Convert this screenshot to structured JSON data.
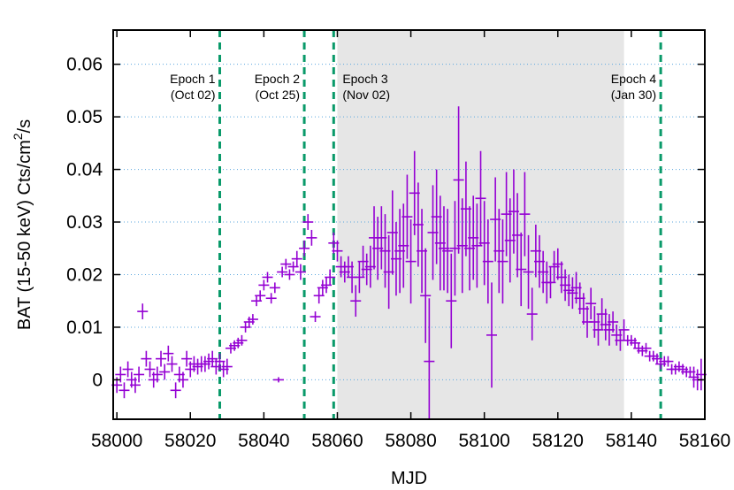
{
  "chart_data": {
    "type": "scatter",
    "xlabel": "MJD",
    "ylabel_main": "BAT (15-50 keV) Cts/cm",
    "ylabel_sup": "2",
    "ylabel_tail": "/s",
    "xlim": [
      57999,
      58160
    ],
    "ylim": [
      -0.0075,
      0.0665
    ],
    "x_ticks": [
      58000,
      58020,
      58040,
      58060,
      58080,
      58100,
      58120,
      58140,
      58160
    ],
    "y_ticks": [
      0,
      0.01,
      0.02,
      0.03,
      0.04,
      0.05,
      0.06
    ],
    "x_tick_labels": [
      "58000",
      "58020",
      "58040",
      "58060",
      "58080",
      "58100",
      "58120",
      "58140",
      "58160"
    ],
    "y_tick_labels": [
      "0",
      "0.01",
      "0.02",
      "0.03",
      "0.04",
      "0.05",
      "0.06"
    ],
    "grid": "horizontal dotted",
    "shaded_region": {
      "x_start": 58060,
      "x_end": 58138,
      "color": "#e6e6e6"
    },
    "epochs": [
      {
        "line1": "Epoch 1",
        "line2": "(Oct 02)",
        "x": 58028
      },
      {
        "line1": "Epoch 2",
        "line2": "(Oct 25)",
        "x": 58051
      },
      {
        "line1": "Epoch 3",
        "line2": "(Nov 02)",
        "x": 58059
      },
      {
        "line1": "Epoch 4",
        "line2": "(Jan 30)",
        "x": 58148
      }
    ],
    "series": [
      {
        "color": "#9400d3",
        "points": [
          [
            58000,
            -0.001,
            0.0015
          ],
          [
            58001,
            0.001,
            0.0015
          ],
          [
            58002,
            -0.002,
            0.0015
          ],
          [
            58003,
            0.002,
            0.0015
          ],
          [
            58004,
            0.0,
            0.0015
          ],
          [
            58005,
            -0.001,
            0.0015
          ],
          [
            58006,
            0.001,
            0.0015
          ],
          [
            58007,
            0.013,
            0.0015
          ],
          [
            58008,
            0.004,
            0.0015
          ],
          [
            58009,
            0.002,
            0.0015
          ],
          [
            58010,
            0.0,
            0.0015
          ],
          [
            58011,
            0.001,
            0.0015
          ],
          [
            58012,
            0.004,
            0.0015
          ],
          [
            58013,
            0.0015,
            0.0015
          ],
          [
            58014,
            0.005,
            0.0015
          ],
          [
            58015,
            0.003,
            0.0015
          ],
          [
            58016,
            -0.002,
            0.0015
          ],
          [
            58017,
            0.001,
            0.0015
          ],
          [
            58018,
            0.0,
            0.0015
          ],
          [
            58019,
            0.004,
            0.0015
          ],
          [
            58020,
            0.002,
            0.0015
          ],
          [
            58021,
            0.003,
            0.0015
          ],
          [
            58022,
            0.0025,
            0.0015
          ],
          [
            58023,
            0.003,
            0.0015
          ],
          [
            58024,
            0.003,
            0.0015
          ],
          [
            58025,
            0.0035,
            0.0015
          ],
          [
            58026,
            0.004,
            0.0015
          ],
          [
            58027,
            0.0025,
            0.0015
          ],
          [
            58028,
            0.0035,
            0.0015
          ],
          [
            58029,
            0.002,
            0.0015
          ],
          [
            58030,
            0.0025,
            0.0015
          ],
          [
            58031,
            0.006,
            0.001
          ],
          [
            58032,
            0.0065,
            0.001
          ],
          [
            58033,
            0.007,
            0.001
          ],
          [
            58034,
            0.0075,
            0.001
          ],
          [
            58035,
            0.01,
            0.001
          ],
          [
            58036,
            0.011,
            0.001
          ],
          [
            58037,
            0.0115,
            0.001
          ],
          [
            58038,
            0.015,
            0.001
          ],
          [
            58039,
            0.016,
            0.001
          ],
          [
            58040,
            0.018,
            0.001
          ],
          [
            58041,
            0.0195,
            0.001
          ],
          [
            58042,
            0.0155,
            0.001
          ],
          [
            58043,
            0.0175,
            0.001
          ],
          [
            58044,
            0.0,
            0.0005
          ],
          [
            58045,
            0.0205,
            0.001
          ],
          [
            58046,
            0.022,
            0.001
          ],
          [
            58047,
            0.02,
            0.001
          ],
          [
            58048,
            0.0215,
            0.001
          ],
          [
            58049,
            0.023,
            0.0015
          ],
          [
            58050,
            0.0205,
            0.0015
          ],
          [
            58051,
            0.025,
            0.0015
          ],
          [
            58052,
            0.03,
            0.0015
          ],
          [
            58053,
            0.027,
            0.0015
          ],
          [
            58054,
            0.012,
            0.001
          ],
          [
            58055,
            0.016,
            0.0015
          ],
          [
            58056,
            0.0175,
            0.0015
          ],
          [
            58057,
            0.018,
            0.0015
          ],
          [
            58058,
            0.0195,
            0.0015
          ],
          [
            58059,
            0.026,
            0.002
          ],
          [
            58060,
            0.0245,
            0.002
          ],
          [
            58061,
            0.0215,
            0.002
          ],
          [
            58062,
            0.0205,
            0.002
          ],
          [
            58063,
            0.0215,
            0.002
          ],
          [
            58064,
            0.0195,
            0.003
          ],
          [
            58065,
            0.015,
            0.003
          ],
          [
            58066,
            0.0195,
            0.003
          ],
          [
            58067,
            0.0225,
            0.003
          ],
          [
            58068,
            0.021,
            0.003
          ],
          [
            58069,
            0.0215,
            0.004
          ],
          [
            58070,
            0.027,
            0.006
          ],
          [
            58071,
            0.025,
            0.006
          ],
          [
            58072,
            0.027,
            0.006
          ],
          [
            58073,
            0.0245,
            0.007
          ],
          [
            58074,
            0.0205,
            0.007
          ],
          [
            58075,
            0.028,
            0.008
          ],
          [
            58076,
            0.023,
            0.007
          ],
          [
            58077,
            0.0245,
            0.008
          ],
          [
            58078,
            0.0255,
            0.008
          ],
          [
            58079,
            0.031,
            0.008
          ],
          [
            58080,
            0.0225,
            0.008
          ],
          [
            58081,
            0.0355,
            0.008
          ],
          [
            58082,
            0.0295,
            0.008
          ],
          [
            58083,
            0.0245,
            0.008
          ],
          [
            58084,
            0.016,
            0.009
          ],
          [
            58085,
            0.0035,
            0.012
          ],
          [
            58086,
            0.028,
            0.009
          ],
          [
            58087,
            0.031,
            0.009
          ],
          [
            58088,
            0.026,
            0.009
          ],
          [
            58089,
            0.025,
            0.008
          ],
          [
            58090,
            0.0245,
            0.008
          ],
          [
            58091,
            0.015,
            0.009
          ],
          [
            58092,
            0.025,
            0.009
          ],
          [
            58093,
            0.038,
            0.014
          ],
          [
            58094,
            0.0255,
            0.009
          ],
          [
            58095,
            0.0325,
            0.009
          ],
          [
            58096,
            0.025,
            0.008
          ],
          [
            58097,
            0.027,
            0.008
          ],
          [
            58098,
            0.0255,
            0.008
          ],
          [
            58099,
            0.0345,
            0.009
          ],
          [
            58100,
            0.026,
            0.008
          ],
          [
            58101,
            0.0225,
            0.008
          ],
          [
            58102,
            0.0085,
            0.01
          ],
          [
            58103,
            0.0305,
            0.008
          ],
          [
            58104,
            0.0245,
            0.008
          ],
          [
            58105,
            0.0225,
            0.008
          ],
          [
            58106,
            0.0315,
            0.008
          ],
          [
            58107,
            0.0265,
            0.008
          ],
          [
            58108,
            0.032,
            0.008
          ],
          [
            58109,
            0.0275,
            0.008
          ],
          [
            58110,
            0.021,
            0.007
          ],
          [
            58111,
            0.0315,
            0.008
          ],
          [
            58112,
            0.0205,
            0.007
          ],
          [
            58113,
            0.0125,
            0.005
          ],
          [
            58114,
            0.0245,
            0.005
          ],
          [
            58115,
            0.0225,
            0.005
          ],
          [
            58116,
            0.0205,
            0.004
          ],
          [
            58117,
            0.0185,
            0.004
          ],
          [
            58118,
            0.0185,
            0.003
          ],
          [
            58119,
            0.0215,
            0.003
          ],
          [
            58120,
            0.022,
            0.003
          ],
          [
            58121,
            0.0195,
            0.003
          ],
          [
            58122,
            0.018,
            0.003
          ],
          [
            58123,
            0.017,
            0.003
          ],
          [
            58124,
            0.0165,
            0.003
          ],
          [
            58125,
            0.0175,
            0.003
          ],
          [
            58126,
            0.0155,
            0.003
          ],
          [
            58127,
            0.0135,
            0.003
          ],
          [
            58128,
            0.011,
            0.003
          ],
          [
            58129,
            0.0145,
            0.003
          ],
          [
            58130,
            0.011,
            0.003
          ],
          [
            58131,
            0.0095,
            0.003
          ],
          [
            58132,
            0.0125,
            0.003
          ],
          [
            58133,
            0.0105,
            0.003
          ],
          [
            58134,
            0.0095,
            0.003
          ],
          [
            58135,
            0.011,
            0.002
          ],
          [
            58136,
            0.0085,
            0.002
          ],
          [
            58137,
            0.0075,
            0.002
          ],
          [
            58138,
            0.0095,
            0.002
          ],
          [
            58139,
            0.0075,
            0.001
          ],
          [
            58140,
            0.0075,
            0.001
          ],
          [
            58141,
            0.007,
            0.001
          ],
          [
            58142,
            0.006,
            0.001
          ],
          [
            58143,
            0.0055,
            0.001
          ],
          [
            58144,
            0.006,
            0.001
          ],
          [
            58145,
            0.0045,
            0.001
          ],
          [
            58146,
            0.0045,
            0.001
          ],
          [
            58147,
            0.004,
            0.001
          ],
          [
            58148,
            0.003,
            0.001
          ],
          [
            58149,
            0.0035,
            0.001
          ],
          [
            58150,
            0.0035,
            0.001
          ],
          [
            58151,
            0.002,
            0.001
          ],
          [
            58152,
            0.002,
            0.001
          ],
          [
            58153,
            0.0025,
            0.001
          ],
          [
            58154,
            0.002,
            0.001
          ],
          [
            58155,
            0.0015,
            0.001
          ],
          [
            58156,
            0.0015,
            0.001
          ],
          [
            58157,
            0.0005,
            0.002
          ],
          [
            58158,
            0.0,
            0.002
          ],
          [
            58159,
            0.001,
            0.003
          ]
        ]
      }
    ]
  }
}
